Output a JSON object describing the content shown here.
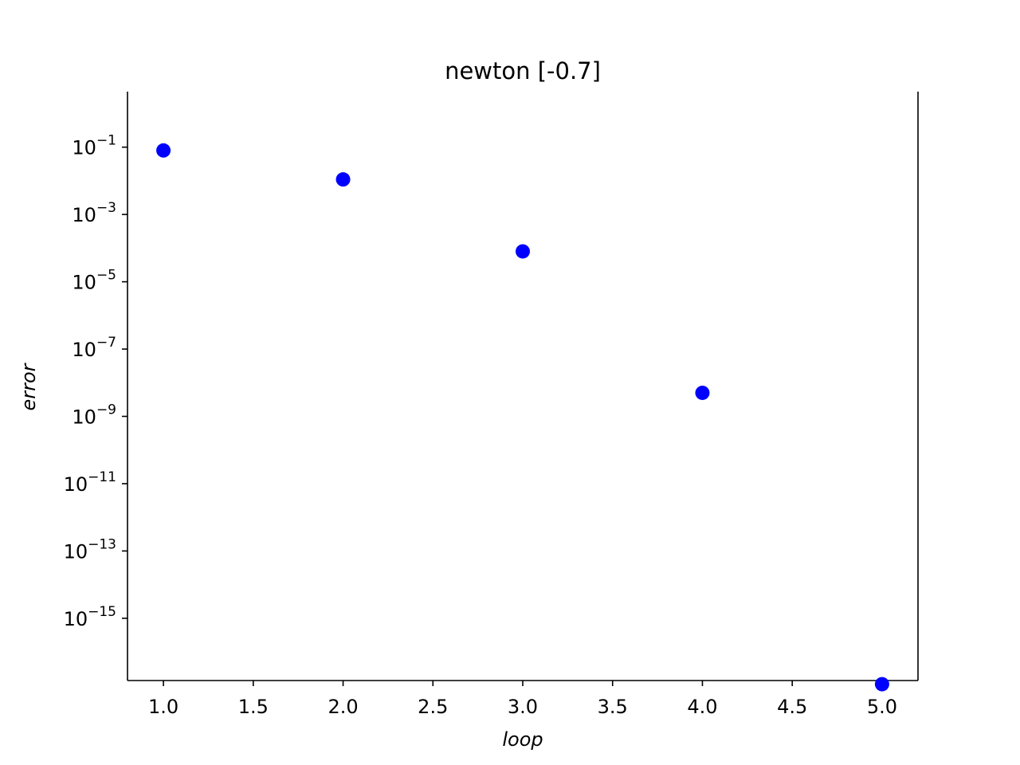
{
  "chart_data": {
    "type": "scatter",
    "title": "newton [-0.7]",
    "xlabel": "loop",
    "ylabel": "error",
    "xscale": "linear",
    "yscale": "log",
    "xlim": [
      0.8,
      5.2
    ],
    "ylim_exponent": [
      -16.85,
      0.65
    ],
    "x": [
      1,
      2,
      3,
      4,
      5
    ],
    "y": [
      0.08,
      0.011,
      8e-05,
      5e-09,
      1.1e-17
    ],
    "marker_color": "#0000ff",
    "x_ticks": [
      "1.0",
      "1.5",
      "2.0",
      "2.5",
      "3.0",
      "3.5",
      "4.0",
      "4.5",
      "5.0"
    ],
    "y_ticks": [
      {
        "base": "10",
        "exp": "−1"
      },
      {
        "base": "10",
        "exp": "−3"
      },
      {
        "base": "10",
        "exp": "−5"
      },
      {
        "base": "10",
        "exp": "−7"
      },
      {
        "base": "10",
        "exp": "−9"
      },
      {
        "base": "10",
        "exp": "−11"
      },
      {
        "base": "10",
        "exp": "−13"
      },
      {
        "base": "10",
        "exp": "−15"
      }
    ],
    "grid": false,
    "spines": [
      "left",
      "right",
      "bottom"
    ]
  }
}
